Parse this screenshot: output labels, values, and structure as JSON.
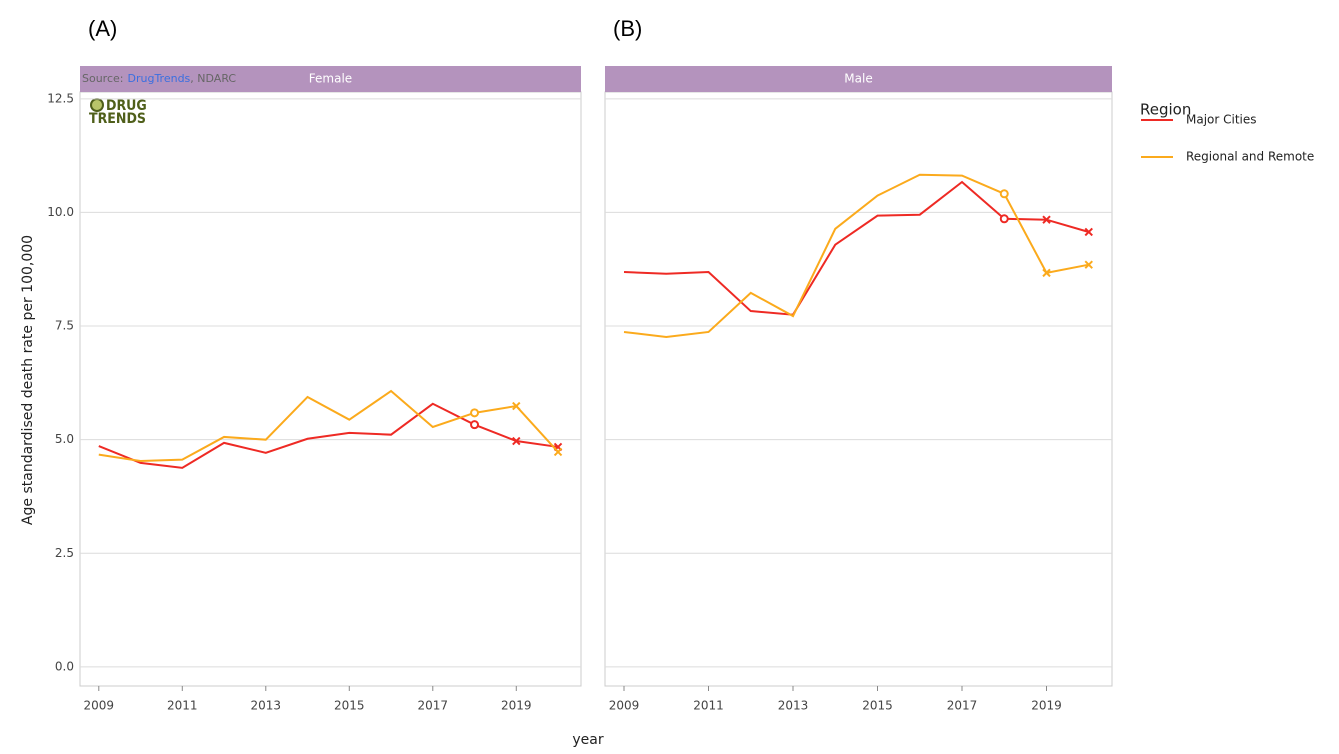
{
  "chart_data": [
    {
      "type": "line",
      "panel_label": "(A)",
      "title": "Female",
      "source": [
        "Source:",
        "DrugTrends",
        ", NDARC"
      ],
      "logo": [
        "DRUG",
        "TRENDS"
      ],
      "x": [
        2009,
        2010,
        2011,
        2012,
        2013,
        2014,
        2015,
        2016,
        2017,
        2018,
        2019,
        2020
      ],
      "xlim": [
        2008.55,
        2020.55
      ],
      "xticks": [
        2009,
        2011,
        2013,
        2015,
        2017,
        2019
      ],
      "ylim": [
        -0.42,
        12.65
      ],
      "yticks": [
        {
          "value": 0,
          "label": "0.0"
        },
        2.5,
        {
          "value": 5,
          "label": "5.0"
        },
        7.5,
        {
          "value": 10,
          "label": "10.0"
        },
        12.5
      ],
      "grid": true,
      "series": [
        {
          "name": "Major Cities",
          "color": "#ee2a24",
          "values": [
            4.86,
            4.49,
            4.38,
            4.93,
            4.71,
            5.02,
            5.15,
            5.11,
            5.79,
            5.33,
            4.97,
            4.84
          ],
          "markers": [
            null,
            null,
            null,
            null,
            null,
            null,
            null,
            null,
            null,
            "circle",
            "x",
            "x"
          ]
        },
        {
          "name": "Regional and Remote",
          "color": "#fbaa1c",
          "values": [
            4.67,
            4.53,
            4.56,
            5.06,
            5.0,
            5.94,
            5.44,
            6.07,
            5.28,
            5.59,
            5.74,
            4.73
          ],
          "markers": [
            null,
            null,
            null,
            null,
            null,
            null,
            null,
            null,
            null,
            "circle",
            "x",
            "x"
          ]
        }
      ]
    },
    {
      "type": "line",
      "panel_label": "(B)",
      "title": "Male",
      "x": [
        2009,
        2010,
        2011,
        2012,
        2013,
        2014,
        2015,
        2016,
        2017,
        2018,
        2019,
        2020
      ],
      "xlim": [
        2008.55,
        2020.55
      ],
      "xticks": [
        2009,
        2011,
        2013,
        2015,
        2017,
        2019
      ],
      "ylim": [
        -0.42,
        12.65
      ],
      "yticks": [
        {
          "value": 0,
          "label": "0.0"
        },
        2.5,
        {
          "value": 5,
          "label": "5.0"
        },
        7.5,
        {
          "value": 10,
          "label": "10.0"
        },
        12.5
      ],
      "grid": true,
      "series": [
        {
          "name": "Major Cities",
          "color": "#ee2a24",
          "values": [
            8.69,
            8.65,
            8.69,
            7.83,
            7.75,
            9.29,
            9.93,
            9.95,
            10.67,
            9.86,
            9.84,
            9.57
          ],
          "markers": [
            null,
            null,
            null,
            null,
            null,
            null,
            null,
            null,
            null,
            "circle",
            "x",
            "x"
          ]
        },
        {
          "name": "Regional and Remote",
          "color": "#fbaa1c",
          "values": [
            7.37,
            7.26,
            7.37,
            8.23,
            7.72,
            9.64,
            10.37,
            10.83,
            10.81,
            10.41,
            8.67,
            8.85
          ],
          "markers": [
            null,
            null,
            null,
            null,
            null,
            null,
            null,
            null,
            null,
            "circle",
            "x",
            "x"
          ]
        }
      ]
    }
  ],
  "y_label": "Age standardised death rate per 100,000",
  "x_label": "year",
  "legend": {
    "title": "Region",
    "position": "right"
  }
}
